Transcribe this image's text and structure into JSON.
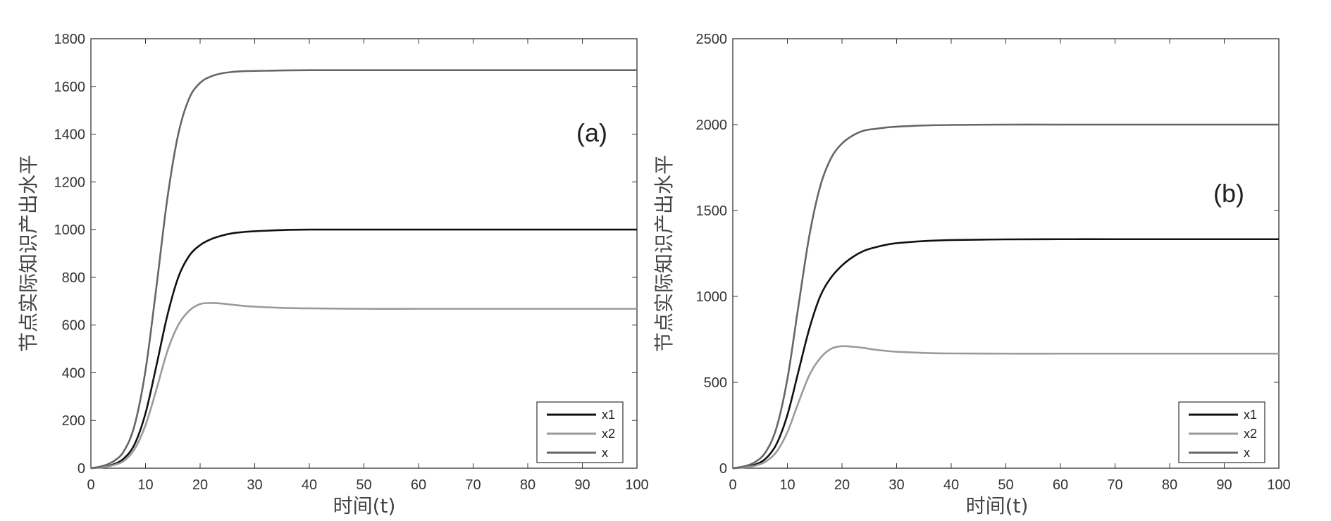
{
  "chart_data": [
    {
      "type": "line",
      "panel_label": "(a)",
      "xlabel": "时间(t)",
      "ylabel": "节点实际知识产出水平",
      "xlim": [
        0,
        100
      ],
      "ylim": [
        0,
        1800
      ],
      "xticks": [
        0,
        10,
        20,
        30,
        40,
        50,
        60,
        70,
        80,
        90,
        100
      ],
      "yticks": [
        0,
        200,
        400,
        600,
        800,
        1000,
        1200,
        1400,
        1600,
        1800
      ],
      "xtick_labels": [
        "0",
        "10",
        "20",
        "30",
        "40",
        "50",
        "60",
        "70",
        "80",
        "90",
        "100"
      ],
      "ytick_labels": [
        "0",
        "200",
        "400",
        "600",
        "800",
        "1000",
        "1200",
        "1400",
        "1600",
        "1800"
      ],
      "grid": false,
      "legend_position": "bottom-right",
      "x": [
        0,
        2,
        4,
        6,
        8,
        10,
        12,
        14,
        16,
        18,
        20,
        22,
        24,
        26,
        28,
        30,
        35,
        40,
        50,
        60,
        70,
        80,
        90,
        100
      ],
      "series": [
        {
          "name": "x1",
          "color": "#111111",
          "values": [
            0,
            5,
            15,
            40,
            100,
            230,
            430,
            640,
            800,
            890,
            935,
            960,
            975,
            985,
            990,
            993,
            998,
            1000,
            1000,
            1000,
            1000,
            1000,
            1000,
            1000
          ]
        },
        {
          "name": "x2",
          "color": "#9a9a9a",
          "values": [
            0,
            3,
            12,
            30,
            80,
            180,
            330,
            490,
            600,
            660,
            688,
            692,
            690,
            685,
            680,
            677,
            672,
            670,
            668,
            668,
            668,
            668,
            668,
            668
          ]
        },
        {
          "name": "x",
          "color": "#666666",
          "values": [
            0,
            8,
            27,
            70,
            180,
            410,
            760,
            1130,
            1400,
            1550,
            1615,
            1642,
            1655,
            1661,
            1664,
            1665,
            1667,
            1668,
            1668,
            1668,
            1668,
            1668,
            1668,
            1668
          ]
        }
      ]
    },
    {
      "type": "line",
      "panel_label": "(b)",
      "xlabel": "时间(t)",
      "ylabel": "节点实际知识产出水平",
      "xlim": [
        0,
        100
      ],
      "ylim": [
        0,
        2500
      ],
      "xticks": [
        0,
        10,
        20,
        30,
        40,
        50,
        60,
        70,
        80,
        90,
        100
      ],
      "yticks": [
        0,
        500,
        1000,
        1500,
        2000,
        2500
      ],
      "xtick_labels": [
        "0",
        "10",
        "20",
        "30",
        "40",
        "50",
        "60",
        "70",
        "80",
        "90",
        "100"
      ],
      "ytick_labels": [
        "0",
        "500",
        "1000",
        "1500",
        "2000",
        "2500"
      ],
      "grid": false,
      "legend_position": "bottom-right",
      "x": [
        0,
        2,
        4,
        6,
        8,
        10,
        12,
        14,
        16,
        18,
        20,
        22,
        24,
        26,
        28,
        30,
        35,
        40,
        50,
        60,
        70,
        80,
        90,
        100
      ],
      "series": [
        {
          "name": "x1",
          "color": "#111111",
          "values": [
            0,
            6,
            20,
            55,
            140,
            310,
            560,
            810,
            1000,
            1110,
            1180,
            1230,
            1265,
            1285,
            1300,
            1310,
            1322,
            1328,
            1332,
            1333,
            1333,
            1333,
            1333,
            1333
          ]
        },
        {
          "name": "x2",
          "color": "#9a9a9a",
          "values": [
            0,
            4,
            14,
            38,
            95,
            210,
            380,
            540,
            640,
            695,
            710,
            707,
            700,
            690,
            683,
            678,
            671,
            668,
            667,
            667,
            667,
            667,
            667,
            667
          ]
        },
        {
          "name": "x",
          "color": "#666666",
          "values": [
            0,
            10,
            34,
            93,
            235,
            520,
            940,
            1350,
            1640,
            1805,
            1890,
            1937,
            1965,
            1975,
            1983,
            1988,
            1995,
            1998,
            2000,
            2000,
            2000,
            2000,
            2000,
            2000
          ]
        }
      ]
    }
  ]
}
